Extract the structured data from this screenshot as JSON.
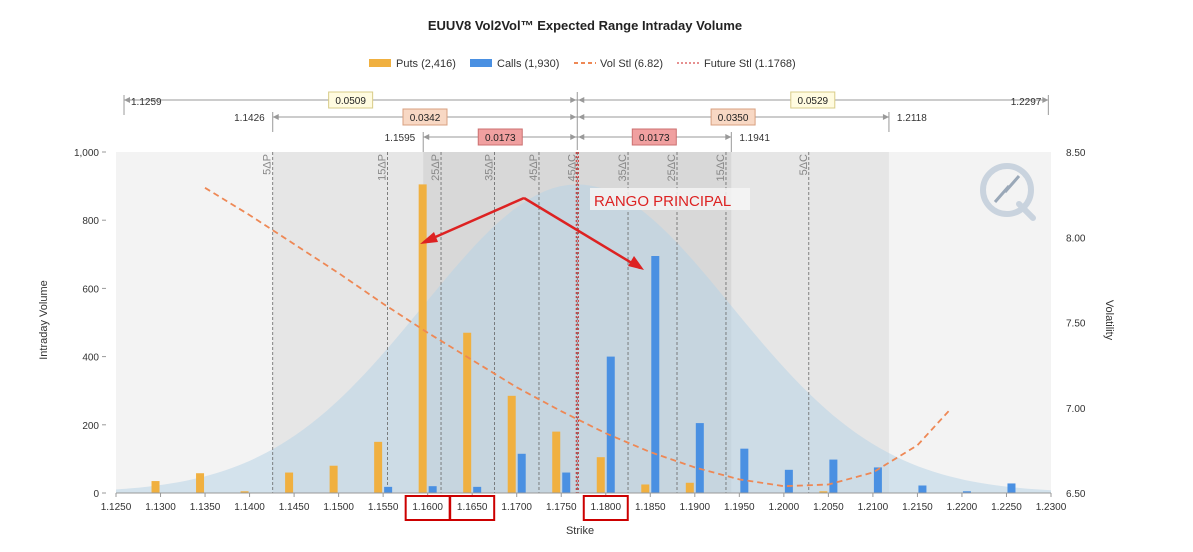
{
  "chart_data": {
    "type": "bar",
    "title": "EUUV8 Vol2Vol™ Expected Range Intraday Volume",
    "xlabel": "Strike",
    "ylabel": "Intraday Volume",
    "y2label": "Volatility",
    "xlim": [
      1.125,
      1.23
    ],
    "ylim": [
      0,
      1000
    ],
    "y2lim": [
      6.5,
      8.5
    ],
    "x_ticks": [
      "1.1250",
      "1.1300",
      "1.1350",
      "1.1400",
      "1.1450",
      "1.1500",
      "1.1550",
      "1.1600",
      "1.1650",
      "1.1700",
      "1.1750",
      "1.1800",
      "1.1850",
      "1.1900",
      "1.1950",
      "1.2000",
      "1.2050",
      "1.2100",
      "1.2150",
      "1.2200",
      "1.2250",
      "1.2300"
    ],
    "y_ticks": [
      "0",
      "200",
      "400",
      "600",
      "800",
      "1,000"
    ],
    "y2_ticks": [
      "6.50",
      "7.00",
      "7.50",
      "8.00",
      "8.50"
    ],
    "legend": {
      "placement": "top-center",
      "entries": [
        {
          "label": "Puts (2,416)",
          "color": "#f0b040",
          "kind": "bar"
        },
        {
          "label": "Calls (1,930)",
          "color": "#4a90e2",
          "kind": "bar"
        },
        {
          "label": "Vol Stl (6.82)",
          "color": "#ee8855",
          "kind": "dash"
        },
        {
          "label": "Future Stl (1.1768)",
          "color": "#cc2222",
          "kind": "dot"
        }
      ]
    },
    "strikes": [
      1.13,
      1.135,
      1.14,
      1.145,
      1.15,
      1.155,
      1.16,
      1.165,
      1.17,
      1.175,
      1.18,
      1.185,
      1.19,
      1.195,
      1.2,
      1.205,
      1.21,
      1.215,
      1.22,
      1.225
    ],
    "series": [
      {
        "name": "Puts (2,416)",
        "color": "#f0b040",
        "values": [
          35,
          58,
          5,
          60,
          80,
          150,
          905,
          470,
          285,
          180,
          105,
          25,
          30,
          0,
          0,
          5,
          0,
          0,
          0,
          0
        ]
      },
      {
        "name": "Calls (1,930)",
        "color": "#4a90e2",
        "values": [
          0,
          0,
          0,
          0,
          0,
          18,
          20,
          18,
          115,
          60,
          400,
          695,
          205,
          130,
          68,
          98,
          75,
          22,
          5,
          28
        ]
      }
    ],
    "vol_curve": {
      "name": "Vol Stl (6.82)",
      "color": "#ee8855",
      "points": [
        [
          1.135,
          8.29
        ],
        [
          1.14,
          8.13
        ],
        [
          1.145,
          7.96
        ],
        [
          1.15,
          7.79
        ],
        [
          1.155,
          7.61
        ],
        [
          1.16,
          7.44
        ],
        [
          1.165,
          7.28
        ],
        [
          1.17,
          7.12
        ],
        [
          1.175,
          6.98
        ],
        [
          1.18,
          6.85
        ],
        [
          1.185,
          6.74
        ],
        [
          1.19,
          6.65
        ],
        [
          1.195,
          6.58
        ],
        [
          1.2,
          6.54
        ],
        [
          1.205,
          6.55
        ],
        [
          1.21,
          6.62
        ],
        [
          1.215,
          6.78
        ],
        [
          1.2185,
          6.98
        ]
      ]
    },
    "future_settle": 1.1768,
    "delta_lines": [
      {
        "label": "5ΔP",
        "x": 1.1426
      },
      {
        "label": "15ΔP",
        "x": 1.1555
      },
      {
        "label": "25ΔP",
        "x": 1.1615
      },
      {
        "label": "35ΔP",
        "x": 1.1675
      },
      {
        "label": "45ΔP",
        "x": 1.1725
      },
      {
        "label": "45ΔC",
        "x": 1.1768
      },
      {
        "label": "35ΔC",
        "x": 1.1825
      },
      {
        "label": "25ΔC",
        "x": 1.188
      },
      {
        "label": "15ΔC",
        "x": 1.1935
      },
      {
        "label": "5ΔC",
        "x": 1.2028
      }
    ],
    "ranges": [
      {
        "from": 1.1259,
        "to": 1.2297,
        "from_label": "1.1259",
        "to_label": "1.2297",
        "left_width": "0.0509",
        "right_width": "0.0529",
        "box_color": "#fffbe0",
        "box_border": "#d8cc88"
      },
      {
        "from": 1.1426,
        "to": 1.2118,
        "from_label": "1.1426",
        "to_label": "1.2118",
        "left_width": "0.0342",
        "right_width": "0.0350",
        "box_color": "#f8d8c4",
        "box_border": "#d8a080"
      },
      {
        "from": 1.1595,
        "to": 1.1941,
        "from_label": "1.1595",
        "to_label": "1.1941",
        "left_width": "0.0173",
        "right_width": "0.0173",
        "box_color": "#f0a0a0",
        "box_border": "#cc7070"
      }
    ],
    "annotation": {
      "text": "RANGO PRINCIPAL",
      "color": "#dd2222"
    },
    "highlighted_ticks": [
      "1.1600",
      "1.1650",
      "1.1800"
    ]
  }
}
